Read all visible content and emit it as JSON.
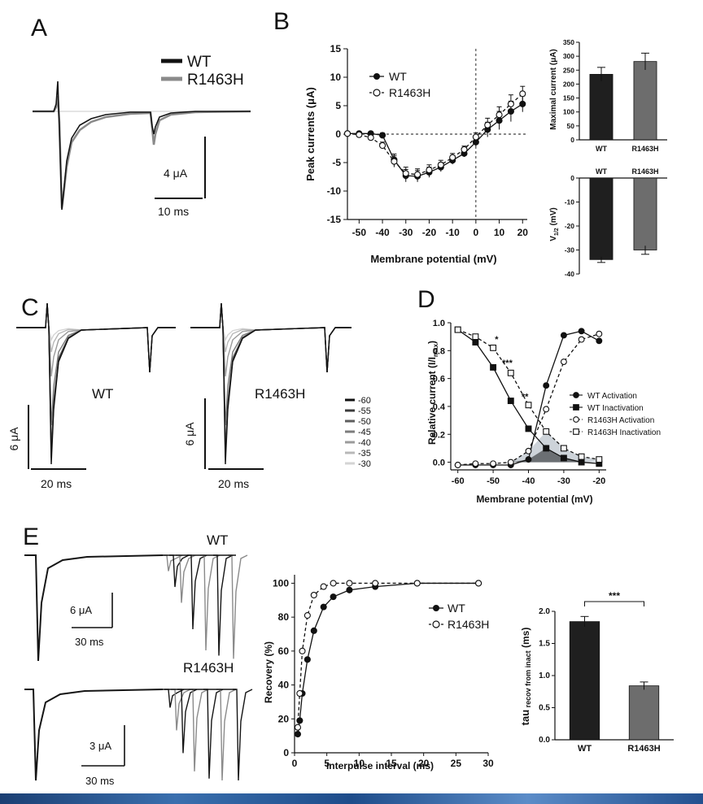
{
  "panels": {
    "A": "A",
    "B": "B",
    "C": "C",
    "D": "D",
    "E": "E"
  },
  "panelA": {
    "legend": [
      "WT",
      "R1463H"
    ],
    "scale_y": "4 μA",
    "scale_x": "10 ms"
  },
  "chartB": {
    "type": "line",
    "xlabel": "Membrane potential (mV)",
    "ylabel": "Peak currents (μA)",
    "xlim": [
      -55,
      22
    ],
    "ylim": [
      -15,
      15
    ],
    "xticks": [
      -50,
      -40,
      -30,
      -20,
      -10,
      0,
      10,
      20
    ],
    "yticks": [
      15,
      10,
      5,
      0,
      -5,
      -10,
      -15
    ],
    "series": [
      {
        "name": "WT",
        "marker": "filled-circle",
        "line": "solid",
        "x": [
          -55,
          -50,
          -45,
          -40,
          -35,
          -30,
          -25,
          -20,
          -15,
          -10,
          -5,
          0,
          5,
          10,
          15,
          20
        ],
        "y": [
          0.1,
          0.1,
          0.1,
          -0.2,
          -4.5,
          -7.3,
          -7.4,
          -6.7,
          -5.8,
          -4.6,
          -3.4,
          -1.4,
          0.8,
          2.4,
          4.0,
          5.3
        ],
        "err": [
          0.3,
          0.3,
          0.3,
          0.4,
          1.0,
          1.1,
          1.0,
          0.9,
          0.8,
          0.7,
          0.6,
          0.8,
          1.3,
          1.6,
          1.8,
          1.4
        ]
      },
      {
        "name": "R1463H",
        "marker": "open-circle",
        "line": "dashed",
        "x": [
          -55,
          -50,
          -45,
          -40,
          -35,
          -30,
          -25,
          -20,
          -15,
          -10,
          -5,
          0,
          5,
          10,
          15,
          20
        ],
        "y": [
          0.1,
          -0.1,
          -0.6,
          -2.0,
          -4.8,
          -6.9,
          -7.1,
          -6.3,
          -5.4,
          -4.1,
          -2.7,
          -0.5,
          1.6,
          3.4,
          5.3,
          7.1
        ],
        "err": [
          0.3,
          0.3,
          0.4,
          0.6,
          1.0,
          1.1,
          1.0,
          0.9,
          0.8,
          0.7,
          0.6,
          0.7,
          1.2,
          1.4,
          1.6,
          1.3
        ]
      }
    ]
  },
  "chartBmax": {
    "type": "bar",
    "ylabel": "Maximal current (μA)",
    "ylim": [
      0,
      350
    ],
    "yticks": [
      0,
      50,
      100,
      150,
      200,
      250,
      300,
      350
    ],
    "categories": [
      "WT",
      "R1463H"
    ],
    "values": [
      235,
      281
    ],
    "err": [
      25,
      30
    ],
    "colors": [
      "#1f1f1f",
      "#6d6d6d"
    ]
  },
  "chartBv": {
    "type": "bar",
    "ylabel_main": "V",
    "ylabel_sub": "1/2",
    "ylabel_unit": " (mV)",
    "ylim": [
      -40,
      0
    ],
    "yticks": [
      0,
      -10,
      -20,
      -30,
      -40
    ],
    "categories": [
      "WT",
      "R1463H"
    ],
    "values": [
      -34,
      -30
    ],
    "err": [
      1.2,
      1.8
    ],
    "colors": [
      "#1f1f1f",
      "#6d6d6d"
    ]
  },
  "panelC": {
    "label_wt": "WT",
    "label_mut": "R1463H",
    "scale_y": "6 μA",
    "scale_x": "20 ms",
    "voltages": [
      "-60",
      "-55",
      "-50",
      "-45",
      "-40",
      "-35",
      "-30"
    ],
    "voltage_colors": [
      "#111111",
      "#3c3c3c",
      "#5e5e5e",
      "#7d7d7d",
      "#9b9b9b",
      "#b8b8b8",
      "#d4d4d4"
    ]
  },
  "chartD": {
    "type": "line",
    "xlabel": "Membrane potential (mV)",
    "ylabel_main": "Relative current (I/I",
    "ylabel_sub": "max",
    "ylabel_end": ")",
    "xlim": [
      -62,
      -18
    ],
    "ylim": [
      0,
      1.0
    ],
    "xticks": [
      -60,
      -50,
      -40,
      -30,
      -20
    ],
    "yticks": [
      1.0,
      0.8,
      0.6,
      0.4,
      0.2,
      0.0
    ],
    "annotations": [
      {
        "text": "*",
        "x": -49,
        "y": 0.86
      },
      {
        "text": "***",
        "x": -46,
        "y": 0.69
      },
      {
        "text": "**",
        "x": -41,
        "y": 0.45
      }
    ],
    "series": [
      {
        "name": "WT Activation",
        "marker": "filled-circle",
        "line": "solid",
        "x": [
          -60,
          -55,
          -50,
          -45,
          -40,
          -35,
          -30,
          -25,
          -20
        ],
        "y": [
          -0.02,
          -0.02,
          -0.02,
          -0.02,
          0.02,
          0.55,
          0.91,
          0.94,
          0.87
        ]
      },
      {
        "name": "WT Inactivation",
        "marker": "filled-square",
        "line": "solid",
        "x": [
          -60,
          -55,
          -50,
          -45,
          -40,
          -35,
          -30,
          -25,
          -20
        ],
        "y": [
          0.95,
          0.86,
          0.68,
          0.44,
          0.24,
          0.1,
          0.03,
          0.0,
          -0.01
        ]
      },
      {
        "name": "R1463H Activation",
        "marker": "open-circle",
        "line": "dashed",
        "x": [
          -60,
          -55,
          -50,
          -45,
          -40,
          -35,
          -30,
          -25,
          -20
        ],
        "y": [
          -0.02,
          -0.01,
          -0.01,
          0.0,
          0.08,
          0.38,
          0.72,
          0.88,
          0.92
        ]
      },
      {
        "name": "R1463H Inactivation",
        "marker": "open-square",
        "line": "dashed",
        "x": [
          -60,
          -55,
          -50,
          -45,
          -40,
          -35,
          -30,
          -25,
          -20
        ],
        "y": [
          0.95,
          0.9,
          0.82,
          0.64,
          0.41,
          0.22,
          0.1,
          0.04,
          0.02
        ]
      }
    ]
  },
  "panelE": {
    "label_wt": "WT",
    "label_mut": "R1463H",
    "scale_y_wt": "6 μA",
    "scale_x_wt": "30 ms",
    "scale_y_mut": "3 μA",
    "scale_x_mut": "30 ms"
  },
  "chartE": {
    "type": "line",
    "xlabel": "Interpulse interval (ms)",
    "ylabel": "Recovery (%)",
    "xlim": [
      0,
      30
    ],
    "ylim": [
      0,
      105
    ],
    "xticks": [
      0,
      5,
      10,
      15,
      20,
      25,
      30
    ],
    "yticks": [
      0,
      20,
      40,
      60,
      80,
      100
    ],
    "series": [
      {
        "name": "WT",
        "marker": "filled-circle",
        "line": "solid",
        "x": [
          0.5,
          0.8,
          1.2,
          2.0,
          3.0,
          4.5,
          6.0,
          8.5,
          12.5,
          19.0,
          28.5
        ],
        "y": [
          11,
          19,
          35,
          55,
          72,
          86,
          92,
          96,
          98,
          100,
          100
        ]
      },
      {
        "name": "R1463H",
        "marker": "open-circle",
        "line": "dashed",
        "x": [
          0.5,
          0.8,
          1.2,
          2.0,
          3.0,
          4.5,
          6.0,
          8.5,
          12.5,
          19.0,
          28.5
        ],
        "y": [
          15,
          35,
          60,
          81,
          93,
          98,
          100,
          100,
          100,
          100,
          100
        ]
      }
    ]
  },
  "chartEtau": {
    "type": "bar",
    "ylabel_main": "tau",
    "ylabel_sub": " recov from inact",
    "ylabel_unit": " (ms)",
    "ylim": [
      0,
      2.0
    ],
    "yticks": [
      0.0,
      0.5,
      1.0,
      1.5,
      2.0
    ],
    "categories": [
      "WT",
      "R1463H"
    ],
    "values": [
      1.84,
      0.84
    ],
    "err": [
      0.08,
      0.06
    ],
    "colors": [
      "#1f1f1f",
      "#6d6d6d"
    ],
    "significance": "***"
  }
}
